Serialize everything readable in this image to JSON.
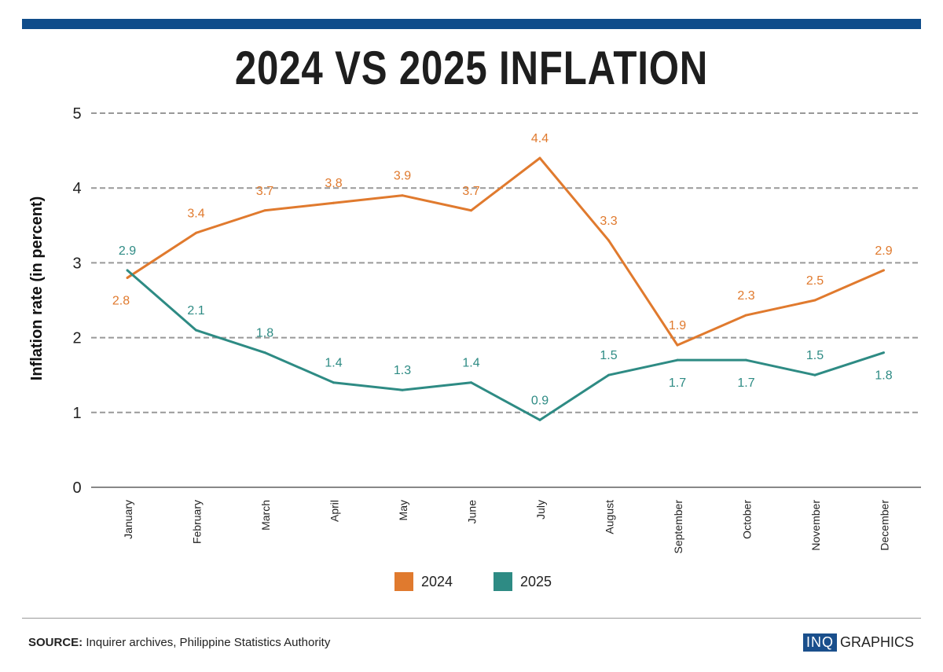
{
  "title": "2024 VS 2025 INFLATION",
  "source_label": "SOURCE:",
  "source_text": "Inquirer archives, Philippine Statistics Authority",
  "logo": {
    "box": "INQ",
    "text": "GRAPHICS"
  },
  "colors": {
    "bar": "#0f4c8a",
    "series_2024": "#e07a2e",
    "series_2025": "#2e8b84"
  },
  "chart_data": {
    "type": "line",
    "title": "2024 VS 2025 INFLATION",
    "ylabel": "Inflation rate (in percent)",
    "xlabel": "",
    "ylim": [
      0,
      5
    ],
    "yticks": [
      "0",
      "1",
      "2",
      "3",
      "4",
      "5"
    ],
    "grid": true,
    "legend_placement": "bottom",
    "categories": [
      "January",
      "February",
      "March",
      "April",
      "May",
      "June",
      "July",
      "August",
      "September",
      "October",
      "November",
      "December"
    ],
    "series": [
      {
        "name": "2024",
        "color": "#e07a2e",
        "values": [
          2.8,
          3.4,
          3.7,
          3.8,
          3.9,
          3.7,
          4.4,
          3.3,
          1.9,
          2.3,
          2.5,
          2.9
        ]
      },
      {
        "name": "2025",
        "color": "#2e8b84",
        "values": [
          2.9,
          2.1,
          1.8,
          1.4,
          1.3,
          1.4,
          0.9,
          1.5,
          1.7,
          1.7,
          1.5,
          1.8
        ]
      }
    ]
  }
}
